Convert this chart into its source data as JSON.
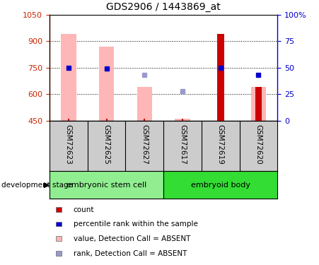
{
  "title": "GDS2906 / 1443869_at",
  "samples": [
    "GSM72623",
    "GSM72625",
    "GSM72627",
    "GSM72617",
    "GSM72619",
    "GSM72620"
  ],
  "groups": [
    {
      "name": "embryonic stem cell",
      "count": 3,
      "color": "#90EE90"
    },
    {
      "name": "embryoid body",
      "count": 3,
      "color": "#33DD33"
    }
  ],
  "ylim_left": [
    450,
    1050
  ],
  "ylim_right": [
    0,
    100
  ],
  "yticks_left": [
    450,
    600,
    750,
    900,
    1050
  ],
  "yticks_right": [
    0,
    25,
    50,
    75,
    100
  ],
  "ytick_labels_right": [
    "0",
    "25",
    "50",
    "75",
    "100%"
  ],
  "pink_bars": {
    "GSM72623": [
      450,
      940
    ],
    "GSM72625": [
      450,
      870
    ],
    "GSM72627": [
      450,
      640
    ],
    "GSM72617": [
      450,
      460
    ],
    "GSM72619": null,
    "GSM72620": [
      450,
      640
    ]
  },
  "red_bars": {
    "GSM72623": null,
    "GSM72625": null,
    "GSM72627": null,
    "GSM72617": null,
    "GSM72619": [
      450,
      940
    ],
    "GSM72620": [
      450,
      640
    ]
  },
  "blue_rank_markers": {
    "GSM72623": 50,
    "GSM72625": 49,
    "GSM72627": null,
    "GSM72617": null,
    "GSM72619": 50,
    "GSM72620": 43
  },
  "light_blue_markers": {
    "GSM72623": null,
    "GSM72625": null,
    "GSM72627": 43,
    "GSM72617": 28,
    "GSM72619": null,
    "GSM72620": null
  },
  "small_red_ticks": {
    "GSM72623": true,
    "GSM72625": true,
    "GSM72627": true,
    "GSM72617": true,
    "GSM72619": true,
    "GSM72620": true
  },
  "left_axis_color": "#CC2200",
  "right_axis_color": "#0000CC",
  "pink_color": "#FFB6B6",
  "red_color": "#CC0000",
  "blue_color": "#0000CC",
  "light_blue_color": "#9999CC",
  "development_stage_label": "development stage",
  "legend_items": [
    {
      "color": "#CC0000",
      "label": "count"
    },
    {
      "color": "#0000CC",
      "label": "percentile rank within the sample"
    },
    {
      "color": "#FFB6B6",
      "label": "value, Detection Call = ABSENT"
    },
    {
      "color": "#9999CC",
      "label": "rank, Detection Call = ABSENT"
    }
  ],
  "pink_bar_width": 0.4,
  "red_bar_width": 0.18
}
